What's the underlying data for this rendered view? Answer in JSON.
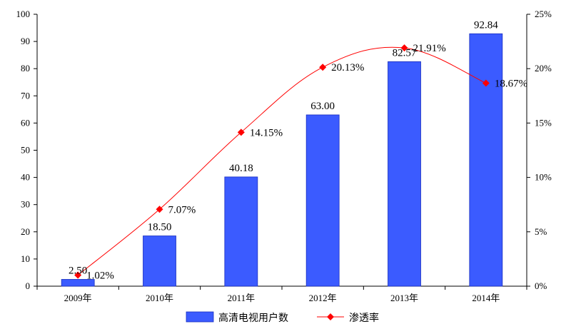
{
  "chart_data": {
    "type": "bar",
    "categories": [
      "2009年",
      "2010年",
      "2011年",
      "2012年",
      "2013年",
      "2014年"
    ],
    "series": [
      {
        "name": "高清电视用户数",
        "type": "bar",
        "axis": "left",
        "color": "#3b5bff",
        "values": [
          2.5,
          18.5,
          40.18,
          63.0,
          82.57,
          92.84
        ],
        "labels": [
          "2.50",
          "18.50",
          "40.18",
          "63.00",
          "82.57",
          "92.84"
        ]
      },
      {
        "name": "渗透率",
        "type": "line",
        "axis": "right",
        "color": "#ff0000",
        "values": [
          1.02,
          7.07,
          14.15,
          20.13,
          21.91,
          18.67
        ],
        "labels": [
          "1.02%",
          "7.07%",
          "14.15%",
          "20.13%",
          "21.91%",
          "18.67%"
        ]
      }
    ],
    "y_left": {
      "min": 0,
      "max": 100,
      "step": 10,
      "ticks": [
        "0",
        "10",
        "20",
        "30",
        "40",
        "50",
        "60",
        "70",
        "80",
        "90",
        "100"
      ]
    },
    "y_right": {
      "min": 0,
      "max": 25,
      "step": 5,
      "ticks": [
        "0%",
        "5%",
        "10%",
        "15%",
        "20%",
        "25%"
      ]
    },
    "grid": false,
    "legend_position": "bottom"
  }
}
